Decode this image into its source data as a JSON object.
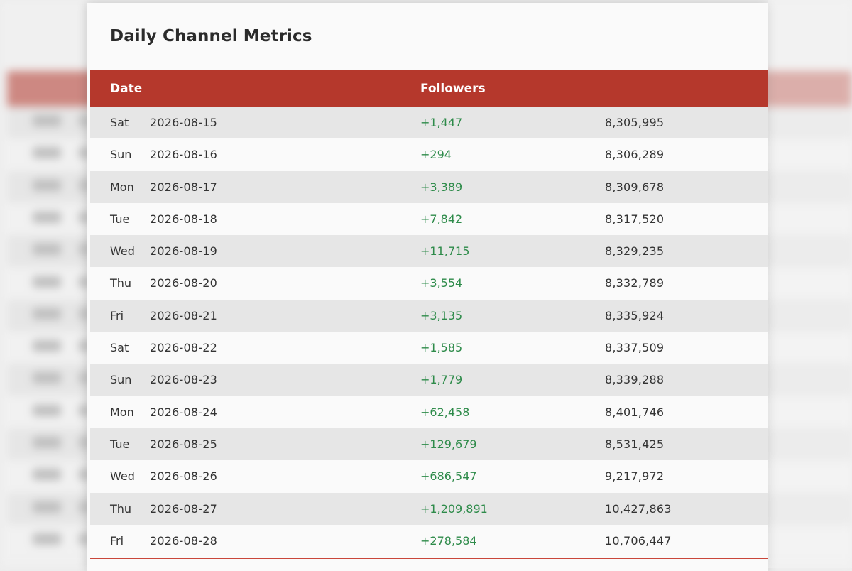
{
  "card": {
    "title": "Daily Channel Metrics"
  },
  "table": {
    "headers": {
      "date": "Date",
      "followers": "Followers"
    },
    "rows": [
      {
        "day": "Sat",
        "date": "2026-08-15",
        "gain": "+1,447",
        "total": "8,305,995"
      },
      {
        "day": "Sun",
        "date": "2026-08-16",
        "gain": "+294",
        "total": "8,306,289"
      },
      {
        "day": "Mon",
        "date": "2026-08-17",
        "gain": "+3,389",
        "total": "8,309,678"
      },
      {
        "day": "Tue",
        "date": "2026-08-18",
        "gain": "+7,842",
        "total": "8,317,520"
      },
      {
        "day": "Wed",
        "date": "2026-08-19",
        "gain": "+11,715",
        "total": "8,329,235"
      },
      {
        "day": "Thu",
        "date": "2026-08-20",
        "gain": "+3,554",
        "total": "8,332,789"
      },
      {
        "day": "Fri",
        "date": "2026-08-21",
        "gain": "+3,135",
        "total": "8,335,924"
      },
      {
        "day": "Sat",
        "date": "2026-08-22",
        "gain": "+1,585",
        "total": "8,337,509"
      },
      {
        "day": "Sun",
        "date": "2026-08-23",
        "gain": "+1,779",
        "total": "8,339,288"
      },
      {
        "day": "Mon",
        "date": "2026-08-24",
        "gain": "+62,458",
        "total": "8,401,746"
      },
      {
        "day": "Tue",
        "date": "2026-08-25",
        "gain": "+129,679",
        "total": "8,531,425"
      },
      {
        "day": "Wed",
        "date": "2026-08-26",
        "gain": "+686,547",
        "total": "9,217,972"
      },
      {
        "day": "Thu",
        "date": "2026-08-27",
        "gain": "+1,209,891",
        "total": "10,427,863"
      },
      {
        "day": "Fri",
        "date": "2026-08-28",
        "gain": "+278,584",
        "total": "10,706,447"
      }
    ]
  },
  "colors": {
    "header_bg": "#b5382c",
    "gain_text": "#2e8b4a",
    "row_odd": "#e6e6e6",
    "row_even": "#fafafa"
  }
}
